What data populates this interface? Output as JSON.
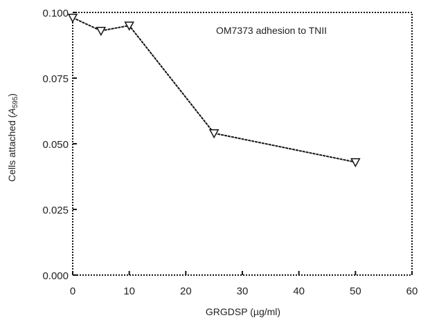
{
  "chart_data": {
    "type": "line",
    "annotation": "OM7373 adhesion to TNII",
    "xlabel": "GRGDSP (µg/ml)",
    "ylabel_prefix": "Cells attached (",
    "ylabel_symbol": "A",
    "ylabel_subscript": "595",
    "ylabel_suffix": ")",
    "x_ticks": [
      0,
      10,
      20,
      30,
      40,
      50,
      60
    ],
    "x_tick_labels": [
      "0",
      "10",
      "20",
      "30",
      "40",
      "50",
      "60"
    ],
    "y_ticks": [
      0,
      0.025,
      0.05,
      0.075,
      0.1
    ],
    "y_tick_labels": [
      "0.000",
      "0.025",
      "0.050",
      "0.075",
      "0.100"
    ],
    "xlim": [
      0,
      60
    ],
    "ylim": [
      0,
      0.1
    ],
    "grid": false,
    "legend": "none",
    "series": [
      {
        "x": [
          0,
          5,
          10,
          25,
          50
        ],
        "y": [
          0.098,
          0.093,
          0.095,
          0.054,
          0.043
        ]
      }
    ],
    "colors": {
      "line": "#111111",
      "axis": "#111111",
      "marker_fill": "#ffffff"
    }
  }
}
